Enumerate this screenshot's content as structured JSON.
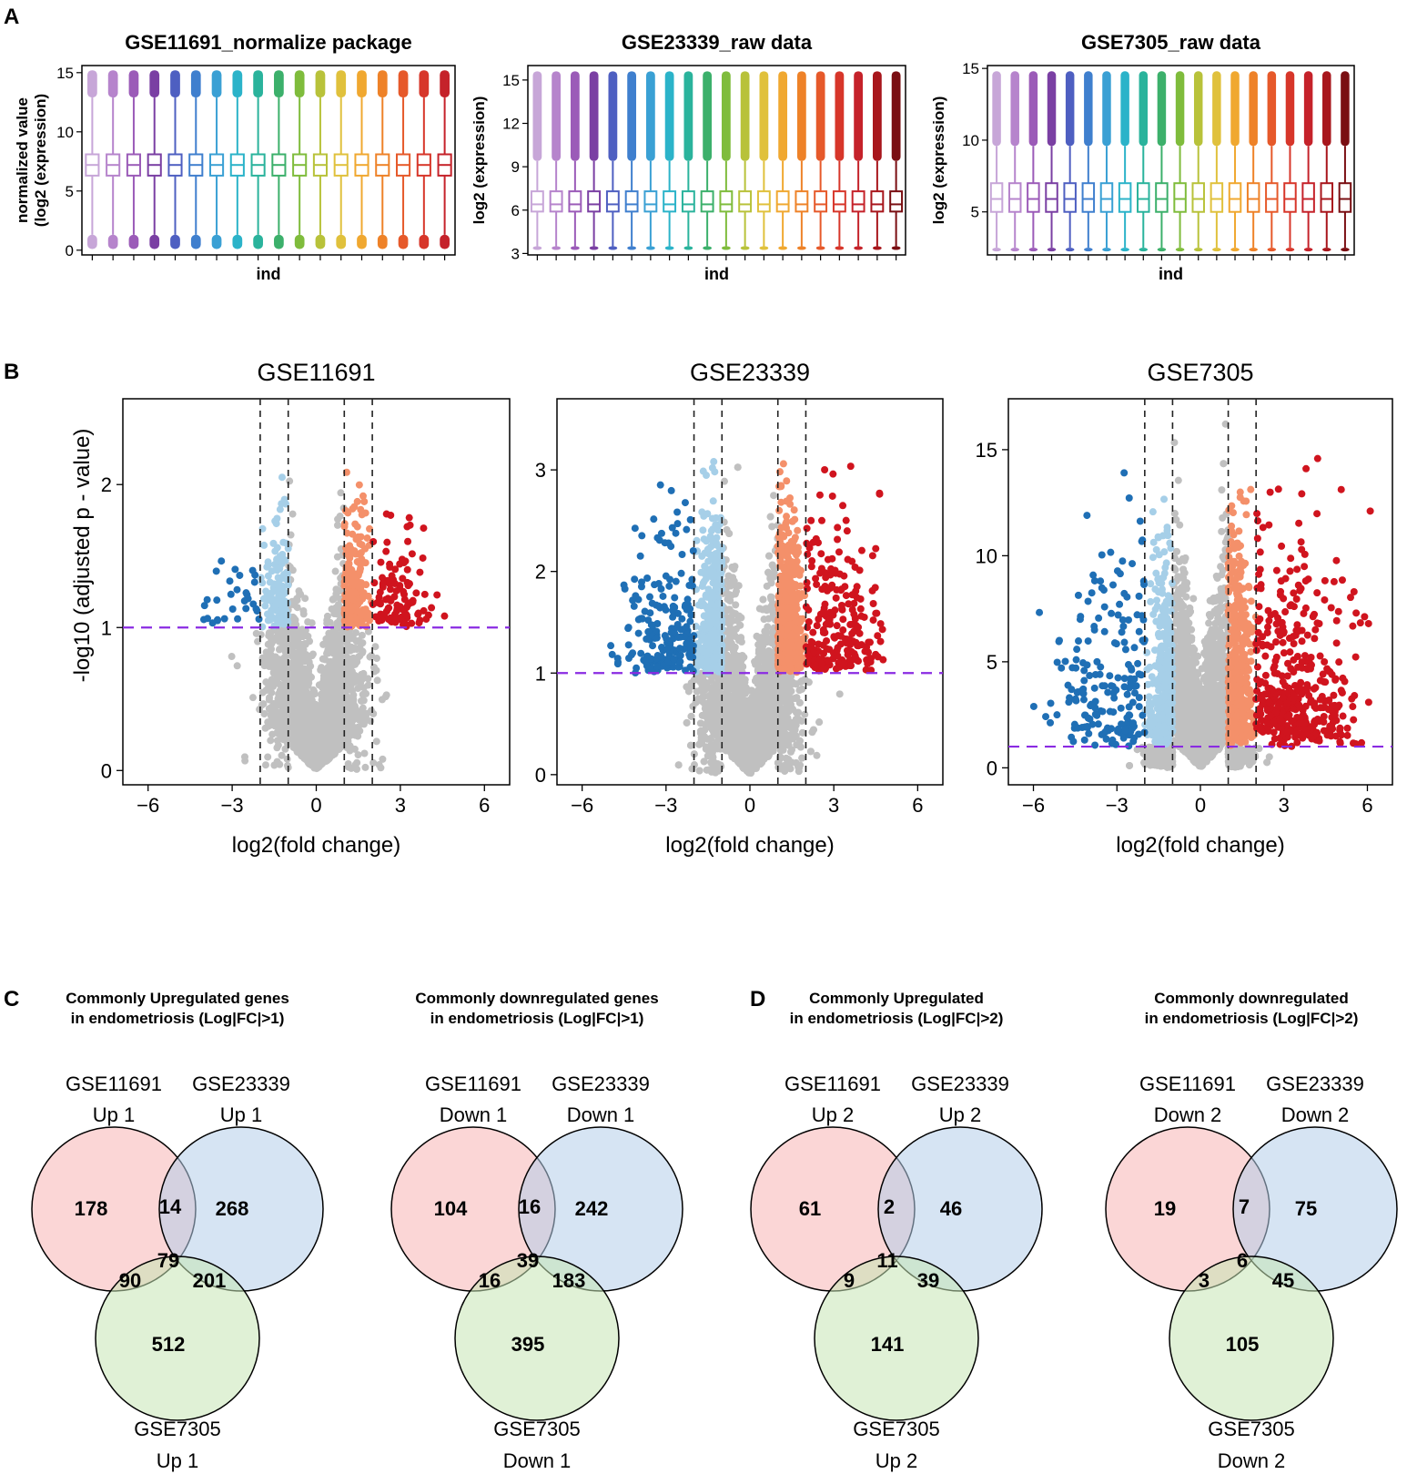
{
  "panel_labels": {
    "a": "A",
    "b": "B",
    "c": "C",
    "d": "D"
  },
  "chart_data": [
    {
      "type": "box",
      "title": "GSE11691_normalize package",
      "xlabel": "ind",
      "ylabel_lines": [
        "normalized value",
        "(log2 (expression)"
      ],
      "ylim": [
        -0.4,
        15.6
      ],
      "yticks": [
        0,
        5,
        10,
        15
      ],
      "n_boxes": 18,
      "box_colors": [
        "#c7a6d8",
        "#b684cc",
        "#9b5bb8",
        "#7a3fa3",
        "#4e5fc1",
        "#3f7fce",
        "#3aa0d4",
        "#2bb3c9",
        "#2ab39c",
        "#3cb06b",
        "#7fbc3c",
        "#b8c23a",
        "#e0c13c",
        "#f0a830",
        "#ee8228",
        "#e6592a",
        "#d7362a",
        "#c5222a"
      ],
      "box_stats": {
        "min": 0.1,
        "q1": 6.3,
        "median": 7.2,
        "q3": 8.1,
        "max": 15.2,
        "whisker_low": 1.3,
        "whisker_high": 12.9
      }
    },
    {
      "type": "box",
      "title": "GSE23339_raw data",
      "xlabel": "ind",
      "ylabel_lines": [
        "log2 (expression)"
      ],
      "ylim": [
        2.9,
        16
      ],
      "yticks": [
        3,
        6,
        9,
        12,
        15
      ],
      "yticklabels": [
        "3",
        "6",
        "9",
        "12",
        "15"
      ],
      "n_boxes": 20,
      "box_colors": [
        "#c7a6d8",
        "#b684cc",
        "#9b5bb8",
        "#7a3fa3",
        "#4e5fc1",
        "#3f7fce",
        "#3aa0d4",
        "#2bb3c9",
        "#2ab39c",
        "#3cb06b",
        "#7fbc3c",
        "#b8c23a",
        "#e0c13c",
        "#f0a830",
        "#ee8228",
        "#e6592a",
        "#d7362a",
        "#c5222a",
        "#a8161c",
        "#7a0e12"
      ],
      "box_stats": {
        "min": 3.5,
        "q1": 5.9,
        "median": 6.4,
        "q3": 7.3,
        "max": 15.6,
        "whisker_low": 3.5,
        "whisker_high": 9.4
      }
    },
    {
      "type": "box",
      "title": "GSE7305_raw data",
      "xlabel": "ind",
      "ylabel_lines": [
        "log2 (expression)"
      ],
      "ylim": [
        2,
        15.2
      ],
      "yticks": [
        5,
        10,
        15
      ],
      "n_boxes": 20,
      "box_colors": [
        "#c7a6d8",
        "#b684cc",
        "#9b5bb8",
        "#7a3fa3",
        "#4e5fc1",
        "#3f7fce",
        "#3aa0d4",
        "#2bb3c9",
        "#2ab39c",
        "#3cb06b",
        "#7fbc3c",
        "#b8c23a",
        "#e0c13c",
        "#f0a830",
        "#ee8228",
        "#e6592a",
        "#d7362a",
        "#c5222a",
        "#a8161c",
        "#7a0e12"
      ],
      "box_stats": {
        "min": 2.5,
        "q1": 5.0,
        "median": 5.9,
        "q3": 7.0,
        "max": 14.8,
        "whisker_low": 2.5,
        "whisker_high": 9.6
      }
    },
    {
      "type": "volcano",
      "title": "GSE11691",
      "xlabel": "log2(fold change)",
      "ylabel": "-log10 (adjusted p - value)",
      "xlim": [
        -6.9,
        6.9
      ],
      "ylim": [
        -0.1,
        2.6
      ],
      "xticks": [
        -6,
        -3,
        0,
        3,
        6
      ],
      "yticks": [
        0,
        1,
        2
      ],
      "fc_thresholds": [
        -2,
        -1,
        1,
        2
      ],
      "p_threshold": 1,
      "colors": {
        "ns": "#c0c0c0",
        "down2": "#1f6fb5",
        "down1": "#a6cfe8",
        "up1": "#f4906a",
        "up2": "#d0141e",
        "pline": "#8a2be2"
      },
      "counts": {
        "ns": 2400,
        "down2": 30,
        "down1": 130,
        "up1": 240,
        "up2": 110
      },
      "xmax_abs": 4.6,
      "ytop": 2.2
    },
    {
      "type": "volcano",
      "title": "GSE23339",
      "xlabel": "log2(fold change)",
      "ylabel": "",
      "xlim": [
        -6.9,
        6.9
      ],
      "ylim": [
        -0.1,
        3.7
      ],
      "xticks": [
        -6,
        -3,
        0,
        3,
        6
      ],
      "yticks": [
        0,
        1,
        2,
        3
      ],
      "fc_thresholds": [
        -2,
        -1,
        1,
        2
      ],
      "p_threshold": 1,
      "colors": {
        "ns": "#c0c0c0",
        "down2": "#1f6fb5",
        "down1": "#a6cfe8",
        "up1": "#f4906a",
        "up2": "#d0141e",
        "pline": "#8a2be2"
      },
      "counts": {
        "ns": 3200,
        "down2": 200,
        "down1": 420,
        "up1": 560,
        "up2": 230
      },
      "xmax_abs": 5.1,
      "ytop": 3.4
    },
    {
      "type": "volcano",
      "title": "GSE7305",
      "xlabel": "log2(fold change)",
      "ylabel": "",
      "xlim": [
        -6.9,
        6.9
      ],
      "ylim": [
        -0.8,
        17.4
      ],
      "xticks": [
        -6,
        -3,
        0,
        3,
        6
      ],
      "yticks": [
        0,
        5,
        10,
        15
      ],
      "fc_thresholds": [
        -2,
        -1,
        1,
        2
      ],
      "p_threshold": 1,
      "colors": {
        "ns": "#c0c0c0",
        "down2": "#1f6fb5",
        "down1": "#a6cfe8",
        "up1": "#f4906a",
        "up2": "#d0141e",
        "pline": "#8a2be2"
      },
      "counts": {
        "ns": 3200,
        "down2": 190,
        "down1": 360,
        "up1": 520,
        "up2": 420
      },
      "xmax_abs": 6.3,
      "ytop": 16.4
    }
  ],
  "venns": [
    {
      "title_lines": [
        "Commonly Upregulated genes",
        "in endometriosis (Log|FC|>1)"
      ],
      "set_a": [
        "GSE11691",
        "Up 1"
      ],
      "set_b": [
        "GSE23339",
        "Up 1"
      ],
      "set_c": [
        "GSE7305",
        "Up 1"
      ],
      "values": {
        "a": "178",
        "ab": "14",
        "b": "268",
        "abc": "79",
        "ac": "90",
        "bc": "201",
        "c": "512"
      }
    },
    {
      "title_lines": [
        "Commonly downregulated genes",
        "in endometriosis (Log|FC|>1)"
      ],
      "set_a": [
        "GSE11691",
        "Down 1"
      ],
      "set_b": [
        "GSE23339",
        "Down 1"
      ],
      "set_c": [
        "GSE7305",
        "Down 1"
      ],
      "values": {
        "a": "104",
        "ab": "16",
        "b": "242",
        "abc": "39",
        "ac": "16",
        "bc": "183",
        "c": "395"
      }
    },
    {
      "title_lines": [
        "Commonly Upregulated",
        "in endometriosis (Log|FC|>2)"
      ],
      "set_a": [
        "GSE11691",
        "Up 2"
      ],
      "set_b": [
        "GSE23339",
        "Up 2"
      ],
      "set_c": [
        "GSE7305",
        "Up 2"
      ],
      "values": {
        "a": "61",
        "ab": "2",
        "b": "46",
        "abc": "11",
        "ac": "9",
        "bc": "39",
        "c": "141"
      }
    },
    {
      "title_lines": [
        "Commonly downregulated",
        "in endometriosis (Log|FC|>2)"
      ],
      "set_a": [
        "GSE11691",
        "Down 2"
      ],
      "set_b": [
        "GSE23339",
        "Down 2"
      ],
      "set_c": [
        "GSE7305",
        "Down 2"
      ],
      "values": {
        "a": "19",
        "ab": "7",
        "b": "75",
        "abc": "6",
        "ac": "3",
        "bc": "45",
        "c": "105"
      }
    }
  ],
  "venn_colors": {
    "a": "#f8b4b4",
    "b": "#b4cdea",
    "c": "#c6e6b4"
  }
}
